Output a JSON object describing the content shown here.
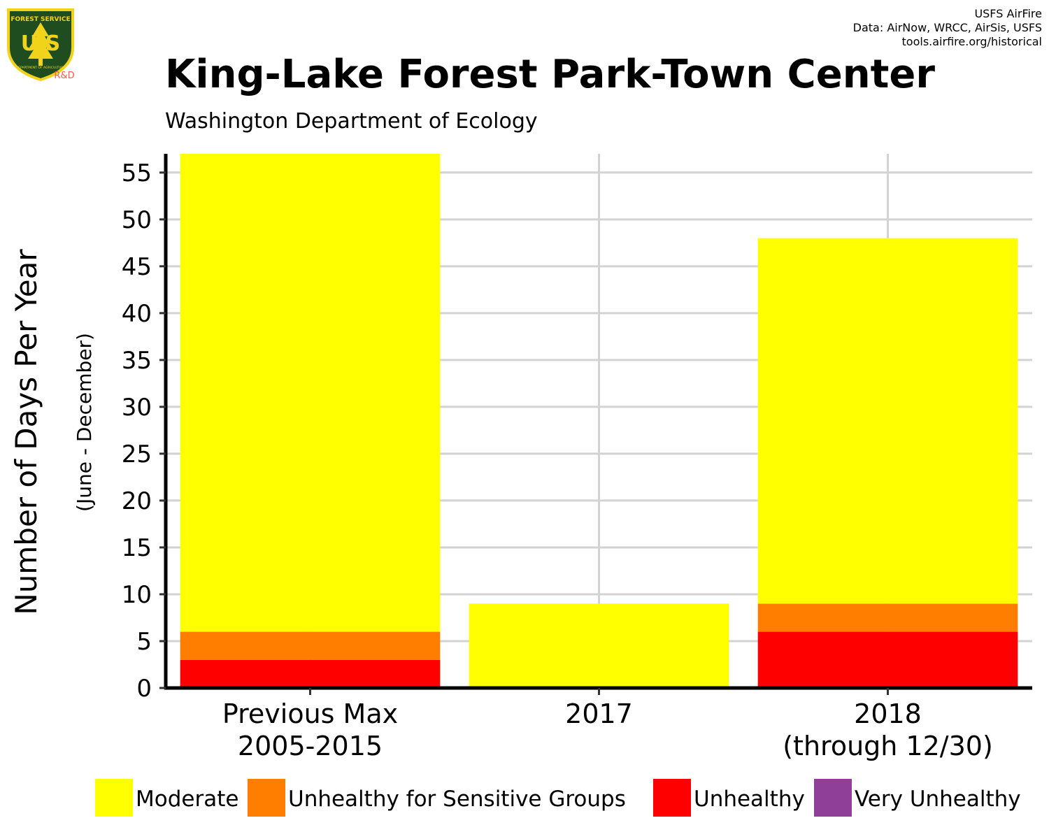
{
  "header": {
    "title": "King-Lake Forest Park-Town Center",
    "subtitle": "Washington Department of Ecology",
    "credits": [
      "USFS AirFire",
      "Data: AirNow, WRCC, AirSis, USFS",
      "tools.airfire.org/historical"
    ]
  },
  "logo": {
    "text_top": "FOREST SERVICE",
    "text_main": "U S",
    "text_bottom": "DEPARTMENT OF AGRICULTURE",
    "tag": "R&D"
  },
  "chart_data": {
    "type": "bar",
    "stacked": true,
    "title": "King-Lake Forest Park-Town Center",
    "subtitle": "Washington Department of Ecology",
    "xlabel": "",
    "ylabel": "Number of Days Per Year",
    "ylabel_sub": "(June - December)",
    "ylim": [
      0,
      57
    ],
    "yticks": [
      0,
      5,
      10,
      15,
      20,
      25,
      30,
      35,
      40,
      45,
      50,
      55
    ],
    "grid": true,
    "legend_position": "bottom",
    "categories": [
      [
        "Previous Max",
        "2005-2015"
      ],
      [
        "2017"
      ],
      [
        "2018",
        "(through 12/30)"
      ]
    ],
    "series": [
      {
        "name": "Moderate",
        "color": "#ffff00",
        "values": [
          51,
          9,
          39
        ]
      },
      {
        "name": "Unhealthy for Sensitive Groups",
        "color": "#ff7e00",
        "values": [
          3,
          0,
          3
        ]
      },
      {
        "name": "Unhealthy",
        "color": "#ff0000",
        "values": [
          3,
          0,
          6
        ]
      },
      {
        "name": "Very Unhealthy",
        "color": "#8f3f97",
        "values": [
          0,
          0,
          0
        ]
      }
    ]
  }
}
